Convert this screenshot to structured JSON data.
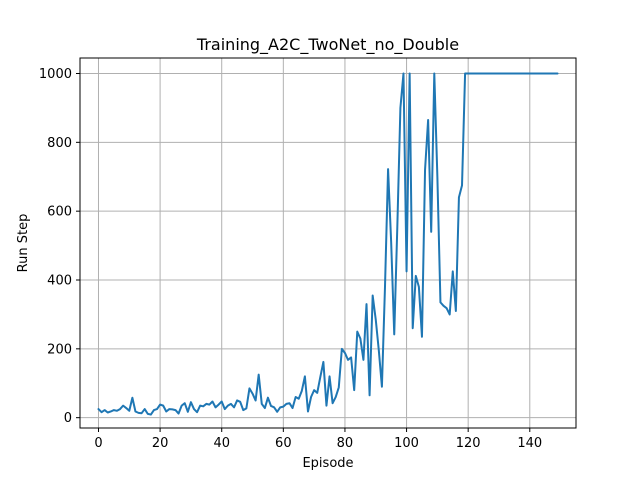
{
  "chart_data": {
    "type": "line",
    "title": "Training_A2C_TwoNet_no_Double",
    "xlabel": "Episode",
    "ylabel": "Run Step",
    "xlim": [
      -6,
      155
    ],
    "ylim": [
      -30,
      1045
    ],
    "xticks": [
      0,
      20,
      40,
      60,
      80,
      100,
      120,
      140
    ],
    "yticks": [
      0,
      200,
      400,
      600,
      800,
      1000
    ],
    "grid": true,
    "colors": {
      "line": "#1f77b4",
      "grid": "#b0b0b0",
      "axes": "#000000"
    },
    "series": [
      {
        "x": [
          0,
          1,
          2,
          3,
          4,
          5,
          6,
          7,
          8,
          9,
          10,
          11,
          12,
          13,
          14,
          15,
          16,
          17,
          18,
          19,
          20,
          21,
          22,
          23,
          24,
          25,
          26,
          27,
          28,
          29,
          30,
          31,
          32,
          33,
          34,
          35,
          36,
          37,
          38,
          39,
          40,
          41,
          42,
          43,
          44,
          45,
          46,
          47,
          48,
          49,
          50,
          51,
          52,
          53,
          54,
          55,
          56,
          57,
          58,
          59,
          60,
          61,
          62,
          63,
          64,
          65,
          66,
          67,
          68,
          69,
          70,
          71,
          72,
          73,
          74,
          75,
          76,
          77,
          78,
          79,
          80,
          81,
          82,
          83,
          84,
          85,
          86,
          87,
          88,
          89,
          90,
          91,
          92,
          93,
          94,
          95,
          96,
          97,
          98,
          99,
          100,
          101,
          102,
          103,
          104,
          105,
          106,
          107,
          108,
          109,
          110,
          111,
          112,
          113,
          114,
          115,
          116,
          117,
          118,
          119,
          120,
          121,
          122,
          123,
          124,
          125,
          126,
          127,
          128,
          129,
          130,
          131,
          132,
          133,
          134,
          135,
          136,
          137,
          138,
          139,
          140,
          141,
          142,
          143,
          144,
          145,
          146,
          147,
          148,
          149
        ],
        "values": [
          25,
          16,
          22,
          15,
          18,
          22,
          20,
          25,
          35,
          28,
          20,
          58,
          18,
          14,
          13,
          25,
          11,
          9,
          22,
          25,
          38,
          35,
          18,
          25,
          24,
          22,
          12,
          35,
          42,
          17,
          45,
          25,
          16,
          35,
          33,
          40,
          38,
          47,
          30,
          38,
          47,
          25,
          35,
          40,
          30,
          50,
          46,
          22,
          27,
          85,
          70,
          50,
          125,
          40,
          28,
          58,
          34,
          30,
          17,
          30,
          32,
          40,
          42,
          28,
          60,
          55,
          78,
          120,
          18,
          60,
          80,
          72,
          118,
          162,
          35,
          120,
          42,
          60,
          88,
          200,
          188,
          168,
          175,
          80,
          250,
          230,
          168,
          330,
          65,
          355,
          285,
          195,
          90,
          380,
          722,
          510,
          242,
          555,
          900,
          1000,
          425,
          1000,
          260,
          412,
          380,
          235,
          720,
          865,
          540,
          1000,
          700,
          335,
          325,
          318,
          300,
          425,
          310,
          640,
          675,
          1000,
          1000,
          1000,
          1000,
          1000,
          1000,
          1000,
          1000,
          1000,
          1000,
          1000,
          1000,
          1000,
          1000,
          1000,
          1000,
          1000,
          1000,
          1000,
          1000,
          1000,
          1000,
          1000,
          1000,
          1000,
          1000,
          1000,
          1000,
          1000,
          1000,
          1000
        ]
      }
    ]
  }
}
